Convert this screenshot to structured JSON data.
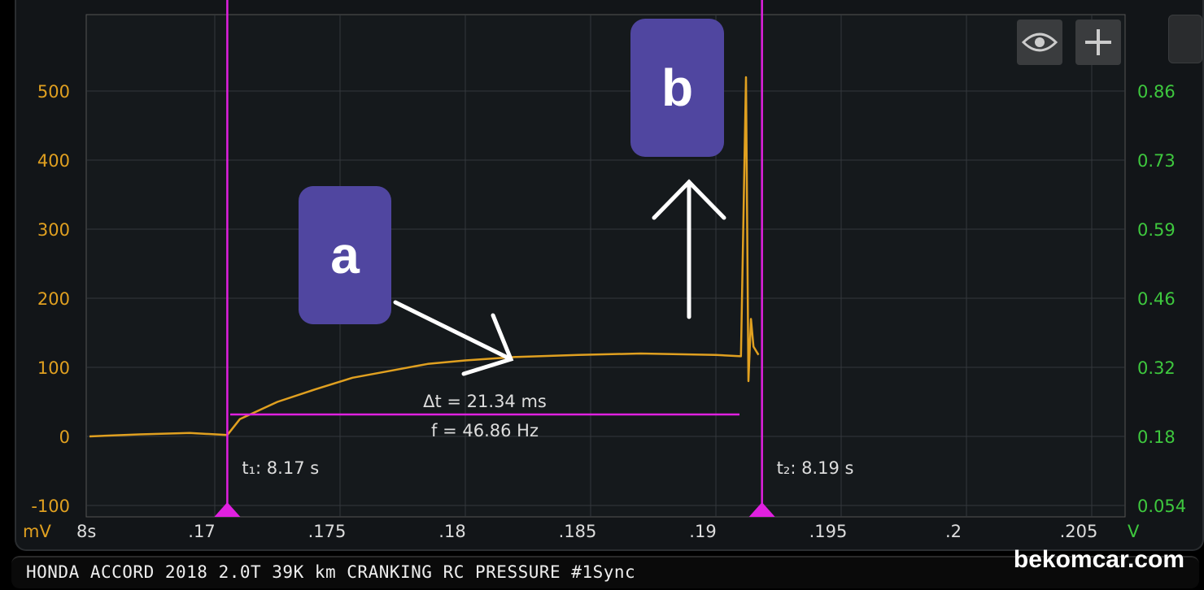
{
  "chart_data": {
    "type": "line",
    "left_unit": "mV",
    "right_unit": "V",
    "x_prefix": "8s",
    "x_ticks": [
      ".17",
      ".175",
      ".18",
      ".185",
      ".19",
      ".195",
      ".2",
      ".205"
    ],
    "x_tick_values": [
      8.17,
      8.175,
      8.18,
      8.185,
      8.19,
      8.195,
      8.2,
      8.205
    ],
    "xlim": [
      8.165,
      8.2085
    ],
    "left_ticks": [
      "500",
      "400",
      "300",
      "200",
      "100",
      "0",
      "-100"
    ],
    "left_tick_values": [
      500,
      400,
      300,
      200,
      100,
      0,
      -100
    ],
    "right_ticks": [
      "0.86",
      "0.73",
      "0.59",
      "0.46",
      "0.32",
      "0.18",
      "0.054"
    ],
    "ylim": [
      -110,
      610
    ],
    "grid": true,
    "series": [
      {
        "color": "#e0a020",
        "x": [
          8.165,
          8.167,
          8.169,
          8.1705,
          8.171,
          8.1725,
          8.174,
          8.1755,
          8.177,
          8.1785,
          8.18,
          8.182,
          8.1845,
          8.187,
          8.19,
          8.191,
          8.1912,
          8.1913,
          8.1914,
          8.1915,
          8.1917
        ],
        "y": [
          0,
          3,
          5,
          2,
          25,
          50,
          68,
          85,
          95,
          105,
          110,
          115,
          118,
          120,
          118,
          116,
          520,
          80,
          170,
          130,
          118
        ]
      }
    ],
    "cursors": [
      {
        "label": "t₁: 8.17 s",
        "x": 8.1705,
        "color": "#e020e0"
      },
      {
        "label": "t₂: 8.19 s",
        "x": 8.19184,
        "color": "#e020e0"
      }
    ],
    "delta_t": "Δt = 21.34 ms",
    "frequency": "f = 46.86 Hz"
  },
  "annotations": {
    "a": "a",
    "b": "b"
  },
  "toolbar": {
    "eye_icon": "eye-icon",
    "plus_icon": "plus-icon"
  },
  "footer": {
    "title": "HONDA ACCORD 2018 2.0T 39K km CRANKING RC PRESSURE #1Sync",
    "brand": "bekomcar.com"
  }
}
